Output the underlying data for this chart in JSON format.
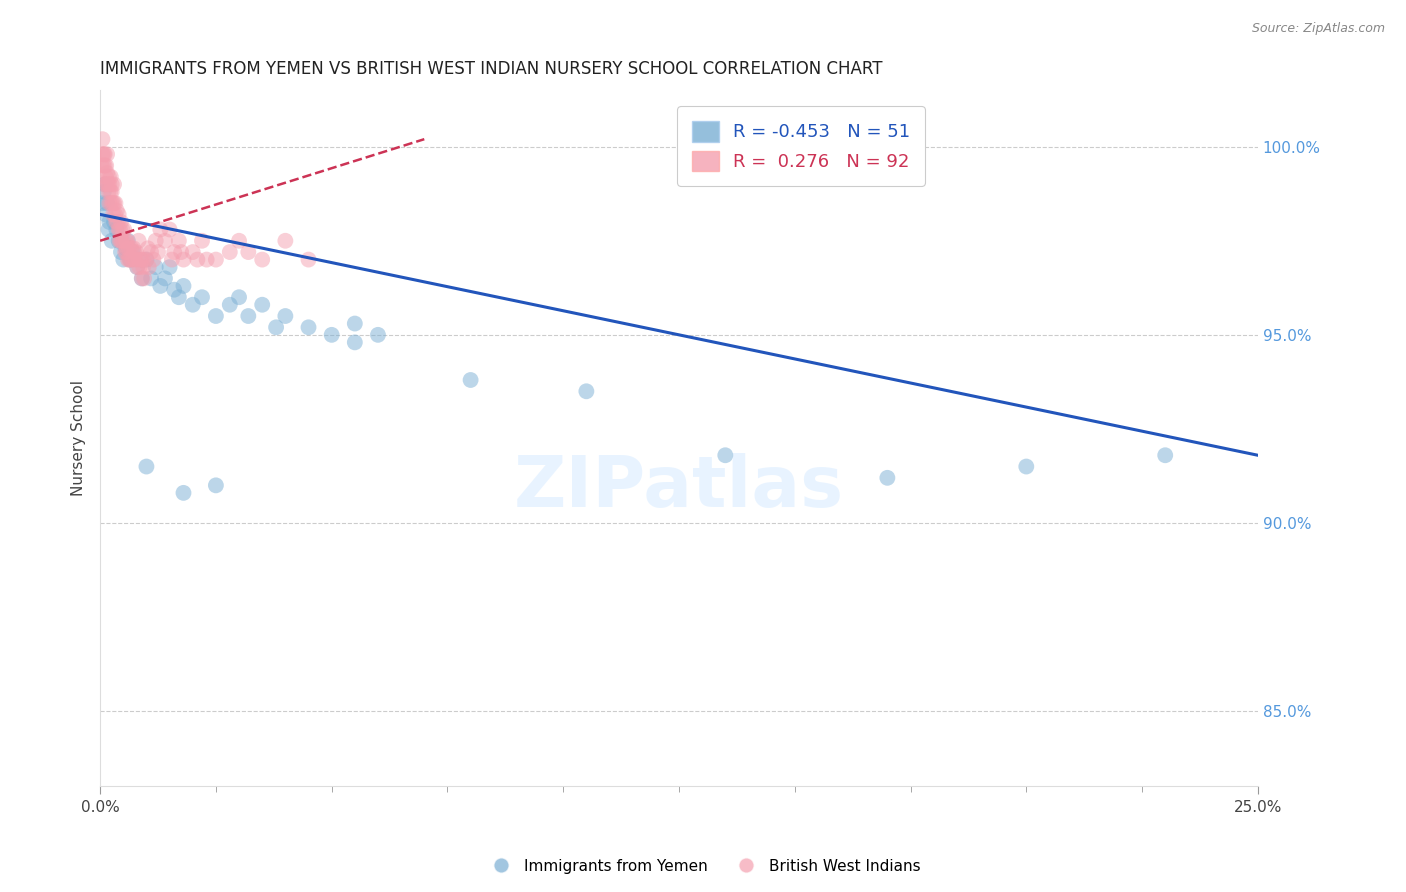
{
  "title": "IMMIGRANTS FROM YEMEN VS BRITISH WEST INDIAN NURSERY SCHOOL CORRELATION CHART",
  "source": "Source: ZipAtlas.com",
  "ylabel": "Nursery School",
  "ylabel_right_ticks": [
    100.0,
    95.0,
    90.0,
    85.0
  ],
  "blue_label": "Immigrants from Yemen",
  "pink_label": "British West Indians",
  "blue_R": -0.453,
  "blue_N": 51,
  "pink_R": 0.276,
  "pink_N": 92,
  "blue_color": "#7BAFD4",
  "pink_color": "#F4A0B0",
  "blue_trend_color": "#2255BB",
  "pink_trend_color": "#CC3355",
  "xlim": [
    0.0,
    25.0
  ],
  "ylim": [
    83.0,
    101.5
  ],
  "blue_trend_x0": 0.0,
  "blue_trend_y0": 98.2,
  "blue_trend_x1": 25.0,
  "blue_trend_y1": 91.8,
  "pink_trend_x0": 0.0,
  "pink_trend_y0": 97.5,
  "pink_trend_x1": 7.0,
  "pink_trend_y1": 100.2,
  "blue_scatter_x": [
    0.05,
    0.08,
    0.1,
    0.12,
    0.15,
    0.18,
    0.2,
    0.25,
    0.3,
    0.35,
    0.4,
    0.45,
    0.5,
    0.55,
    0.6,
    0.65,
    0.7,
    0.8,
    0.9,
    1.0,
    1.1,
    1.2,
    1.3,
    1.4,
    1.5,
    1.6,
    1.7,
    1.8,
    2.0,
    2.2,
    2.5,
    2.8,
    3.0,
    3.2,
    3.5,
    4.0,
    4.5,
    5.0,
    5.5,
    6.0,
    1.0,
    1.8,
    2.5,
    3.8,
    5.5,
    8.0,
    10.5,
    13.5,
    17.0,
    20.0,
    23.0
  ],
  "blue_scatter_y": [
    98.5,
    98.8,
    99.0,
    98.2,
    98.5,
    97.8,
    98.0,
    97.5,
    98.0,
    97.8,
    97.5,
    97.2,
    97.0,
    97.3,
    97.5,
    97.0,
    97.2,
    96.8,
    96.5,
    97.0,
    96.5,
    96.8,
    96.3,
    96.5,
    96.8,
    96.2,
    96.0,
    96.3,
    95.8,
    96.0,
    95.5,
    95.8,
    96.0,
    95.5,
    95.8,
    95.5,
    95.2,
    95.0,
    95.3,
    95.0,
    91.5,
    90.8,
    91.0,
    95.2,
    94.8,
    93.8,
    93.5,
    91.8,
    91.2,
    91.5,
    91.8
  ],
  "pink_scatter_x": [
    0.03,
    0.05,
    0.05,
    0.07,
    0.08,
    0.09,
    0.1,
    0.1,
    0.12,
    0.13,
    0.14,
    0.15,
    0.15,
    0.17,
    0.18,
    0.19,
    0.2,
    0.2,
    0.22,
    0.23,
    0.24,
    0.25,
    0.25,
    0.27,
    0.28,
    0.3,
    0.3,
    0.32,
    0.33,
    0.35,
    0.36,
    0.38,
    0.4,
    0.4,
    0.42,
    0.43,
    0.45,
    0.47,
    0.48,
    0.5,
    0.52,
    0.54,
    0.55,
    0.57,
    0.58,
    0.6,
    0.62,
    0.65,
    0.67,
    0.7,
    0.72,
    0.75,
    0.78,
    0.8,
    0.83,
    0.85,
    0.88,
    0.9,
    0.93,
    0.95,
    1.0,
    1.05,
    1.1,
    1.15,
    1.2,
    1.3,
    1.4,
    1.5,
    1.6,
    1.7,
    1.8,
    2.0,
    2.2,
    2.5,
    2.8,
    3.0,
    3.5,
    4.0,
    4.5,
    1.25,
    0.63,
    0.73,
    0.83,
    0.93,
    1.03,
    2.3,
    3.2,
    1.55,
    1.75,
    2.1,
    0.45,
    0.58
  ],
  "pink_scatter_y": [
    99.5,
    99.8,
    100.2,
    99.5,
    99.8,
    99.0,
    99.5,
    99.8,
    99.2,
    99.5,
    99.0,
    99.3,
    99.8,
    99.0,
    98.8,
    99.2,
    98.5,
    99.0,
    98.8,
    99.2,
    98.5,
    98.8,
    99.0,
    98.5,
    98.2,
    98.5,
    99.0,
    98.2,
    98.5,
    98.0,
    98.3,
    98.0,
    97.8,
    98.2,
    97.5,
    97.8,
    98.0,
    97.5,
    97.8,
    97.5,
    97.8,
    97.2,
    97.5,
    97.2,
    97.5,
    97.0,
    97.3,
    97.0,
    97.3,
    97.0,
    97.3,
    97.0,
    97.2,
    96.8,
    97.0,
    96.8,
    97.0,
    96.5,
    96.8,
    96.5,
    97.0,
    96.8,
    97.2,
    97.0,
    97.5,
    97.8,
    97.5,
    97.8,
    97.2,
    97.5,
    97.0,
    97.2,
    97.5,
    97.0,
    97.2,
    97.5,
    97.0,
    97.5,
    97.0,
    97.2,
    97.0,
    97.2,
    97.5,
    97.0,
    97.3,
    97.0,
    97.2,
    97.0,
    97.2,
    97.0,
    97.5,
    97.3
  ]
}
